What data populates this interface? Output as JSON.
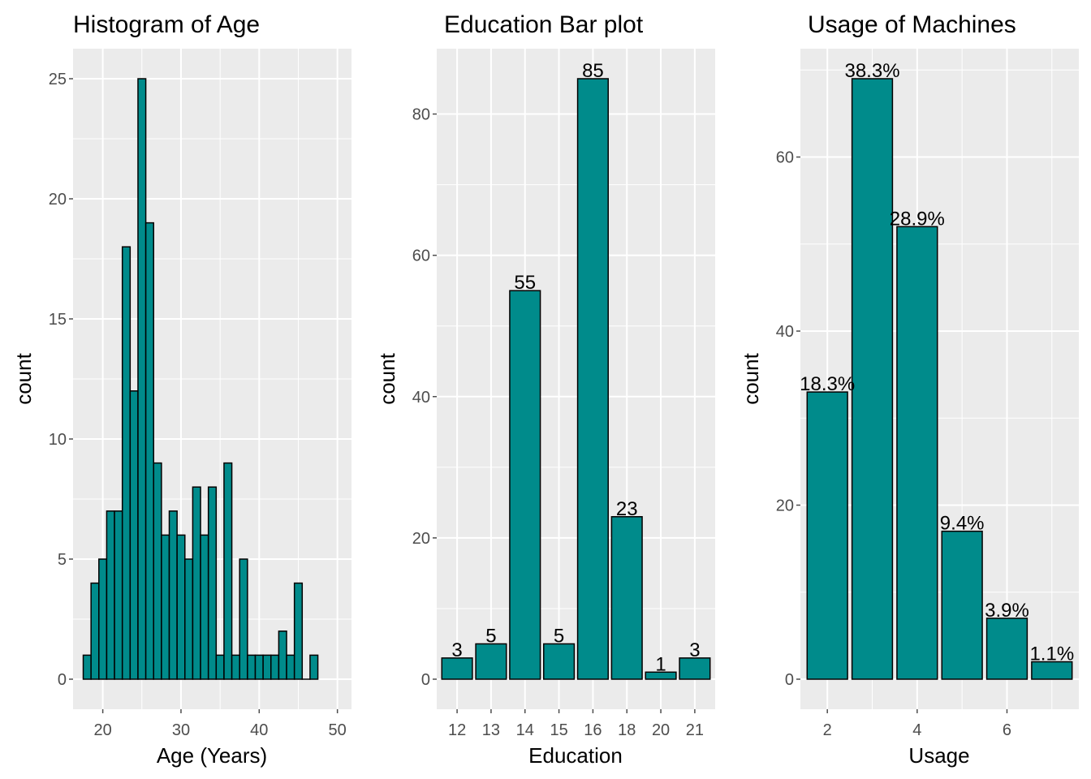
{
  "colors": {
    "panel_bg": "#ebebeb",
    "grid": "#ffffff",
    "bar_fill": "#008b8b",
    "bar_stroke": "#000000",
    "tick": "#4d4d4d",
    "text": "#000000"
  },
  "chart_data": [
    {
      "type": "bar",
      "subtype": "histogram",
      "title": "Histogram of Age",
      "xlabel": "Age (Years)",
      "ylabel": "count",
      "bin_width": 1,
      "bins": [
        {
          "x": 18,
          "count": 1
        },
        {
          "x": 19,
          "count": 4
        },
        {
          "x": 20,
          "count": 5
        },
        {
          "x": 21,
          "count": 7
        },
        {
          "x": 22,
          "count": 7
        },
        {
          "x": 23,
          "count": 18
        },
        {
          "x": 24,
          "count": 12
        },
        {
          "x": 25,
          "count": 25
        },
        {
          "x": 26,
          "count": 19
        },
        {
          "x": 27,
          "count": 9
        },
        {
          "x": 28,
          "count": 6
        },
        {
          "x": 29,
          "count": 7
        },
        {
          "x": 30,
          "count": 6
        },
        {
          "x": 31,
          "count": 5
        },
        {
          "x": 32,
          "count": 8
        },
        {
          "x": 33,
          "count": 6
        },
        {
          "x": 34,
          "count": 8
        },
        {
          "x": 35,
          "count": 1
        },
        {
          "x": 36,
          "count": 9
        },
        {
          "x": 37,
          "count": 1
        },
        {
          "x": 38,
          "count": 5
        },
        {
          "x": 39,
          "count": 1
        },
        {
          "x": 40,
          "count": 1
        },
        {
          "x": 41,
          "count": 1
        },
        {
          "x": 42,
          "count": 1
        },
        {
          "x": 43,
          "count": 2
        },
        {
          "x": 44,
          "count": 1
        },
        {
          "x": 45,
          "count": 4
        },
        {
          "x": 46,
          "count": 0
        },
        {
          "x": 47,
          "count": 1
        }
      ],
      "xticks": [
        20,
        30,
        40,
        50
      ],
      "yticks": [
        0,
        5,
        10,
        15,
        20,
        25
      ],
      "xlim": [
        16.2,
        51.8
      ],
      "ylim": [
        -1.25,
        26.25
      ],
      "grid": true
    },
    {
      "type": "bar",
      "title": "Education Bar plot",
      "xlabel": "Education",
      "ylabel": "count",
      "categories": [
        "12",
        "13",
        "14",
        "15",
        "16",
        "18",
        "20",
        "21"
      ],
      "values": [
        3,
        5,
        55,
        5,
        85,
        23,
        1,
        3
      ],
      "data_labels": [
        "3",
        "5",
        "55",
        "5",
        "85",
        "23",
        "1",
        "3"
      ],
      "yticks": [
        0,
        20,
        40,
        60,
        80
      ],
      "ylim": [
        -4.25,
        89.25
      ],
      "grid": true
    },
    {
      "type": "bar",
      "title": "Usage of Machines",
      "xlabel": "Usage",
      "ylabel": "count",
      "x": [
        2,
        3,
        4,
        5,
        6,
        7
      ],
      "values": [
        33,
        69,
        52,
        17,
        7,
        2
      ],
      "data_labels": [
        "18.3%",
        "38.3%",
        "28.9%",
        "9.4%",
        "3.9%",
        "1.1%"
      ],
      "xticks": [
        2,
        4,
        6
      ],
      "yticks": [
        0,
        20,
        40,
        60
      ],
      "xlim": [
        1.4,
        7.6
      ],
      "ylim": [
        -3.45,
        72.45
      ],
      "grid": true
    }
  ]
}
